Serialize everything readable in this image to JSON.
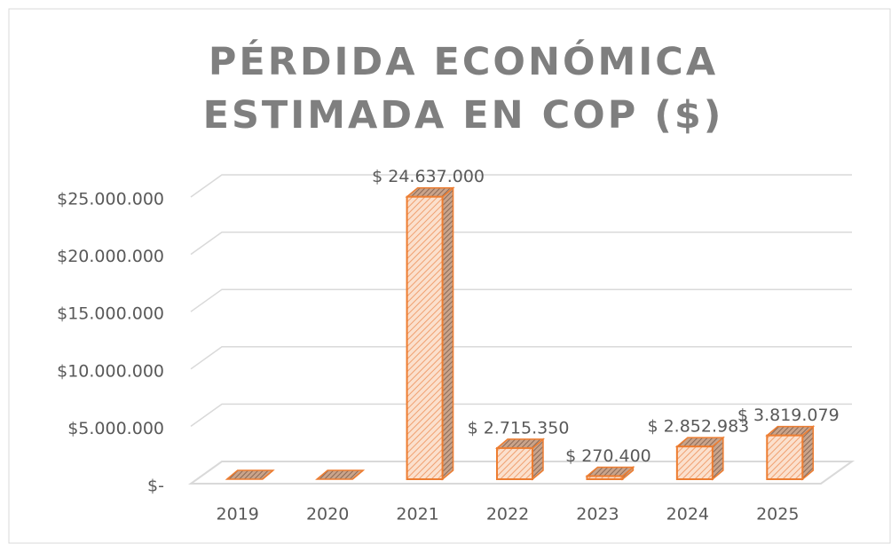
{
  "chart_data": {
    "type": "bar3d",
    "title": "PÉRDIDA ECONÓMICA ESTIMADA EN COP ($)",
    "categories": [
      "2019",
      "2020",
      "2021",
      "2022",
      "2023",
      "2024",
      "2025"
    ],
    "values": [
      0,
      0,
      24637000,
      2715350,
      270400,
      2852983,
      3819079
    ],
    "value_labels": [
      null,
      null,
      "$ 24.637.000",
      "$ 2.715.350",
      "$ 270.400",
      "$ 2.852.983",
      "$ 3.819.079"
    ],
    "color": "#ed7d31",
    "ylim": [
      0,
      25000000
    ],
    "yticks": [
      {
        "value": 0,
        "label": "$-"
      },
      {
        "value": 5000000,
        "label": "$5.000.000"
      },
      {
        "value": 10000000,
        "label": "$10.000.000"
      },
      {
        "value": 15000000,
        "label": "$15.000.000"
      },
      {
        "value": 20000000,
        "label": "$20.000.000"
      },
      {
        "value": 25000000,
        "label": "$25.000.000"
      }
    ],
    "grid": true
  }
}
